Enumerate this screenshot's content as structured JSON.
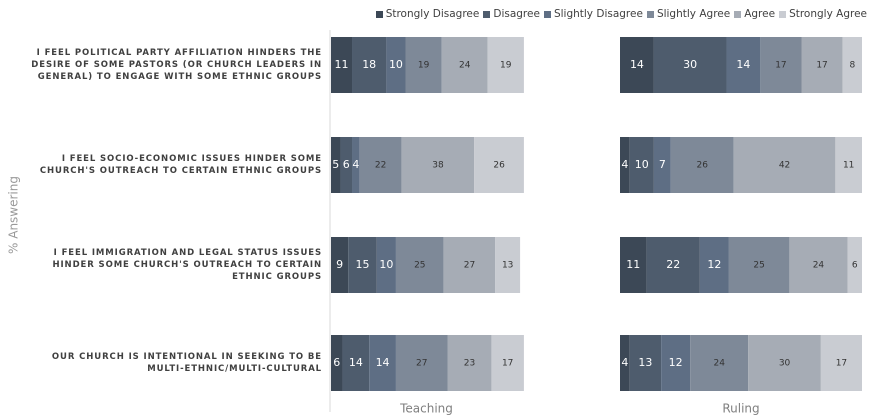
{
  "chart_data": {
    "type": "bar",
    "orientation": "horizontal",
    "stacked": true,
    "ylabel": "% Answering",
    "xlim": [
      0,
      100
    ],
    "categories": [
      "I FEEL POLITICAL PARTY AFFILIATION HINDERS THE DESIRE OF SOME PASTORS (OR CHURCH LEADERS IN GENERAL) TO ENGAGE WITH SOME ETHNIC GROUPS",
      "I FEEL SOCIO-ECONOMIC ISSUES HINDER SOME CHURCH'S OUTREACH TO CERTAIN ETHNIC GROUPS",
      "I FEEL IMMIGRATION AND LEGAL STATUS ISSUES HINDER SOME CHURCH'S OUTREACH TO CERTAIN ETHNIC GROUPS",
      "OUR CHURCH IS INTENTIONAL IN SEEKING TO BE MULTI-ETHNIC/MULTI-CULTURAL"
    ],
    "panels": [
      "Teaching",
      "Ruling"
    ],
    "series": [
      {
        "name": "Strongly Disagree",
        "color": "#3c4856",
        "values": [
          [
            11,
            5,
            9,
            6
          ],
          [
            14,
            4,
            11,
            4
          ]
        ]
      },
      {
        "name": "Disagree",
        "color": "#4e5c6d",
        "values": [
          [
            18,
            6,
            15,
            14
          ],
          [
            30,
            10,
            22,
            13
          ]
        ]
      },
      {
        "name": "Slightly Disagree",
        "color": "#5e6e84",
        "values": [
          [
            10,
            4,
            10,
            14
          ],
          [
            14,
            7,
            12,
            12
          ]
        ]
      },
      {
        "name": "Slightly Agree",
        "color": "#7e8998",
        "values": [
          [
            19,
            22,
            25,
            27
          ],
          [
            17,
            26,
            25,
            24
          ]
        ]
      },
      {
        "name": "Agree",
        "color": "#a6acb5",
        "values": [
          [
            24,
            38,
            27,
            23
          ],
          [
            17,
            42,
            24,
            30
          ]
        ]
      },
      {
        "name": "Strongly Agree",
        "color": "#c9ccd2",
        "values": [
          [
            19,
            26,
            13,
            17
          ],
          [
            8,
            11,
            6,
            17
          ]
        ]
      }
    ]
  }
}
